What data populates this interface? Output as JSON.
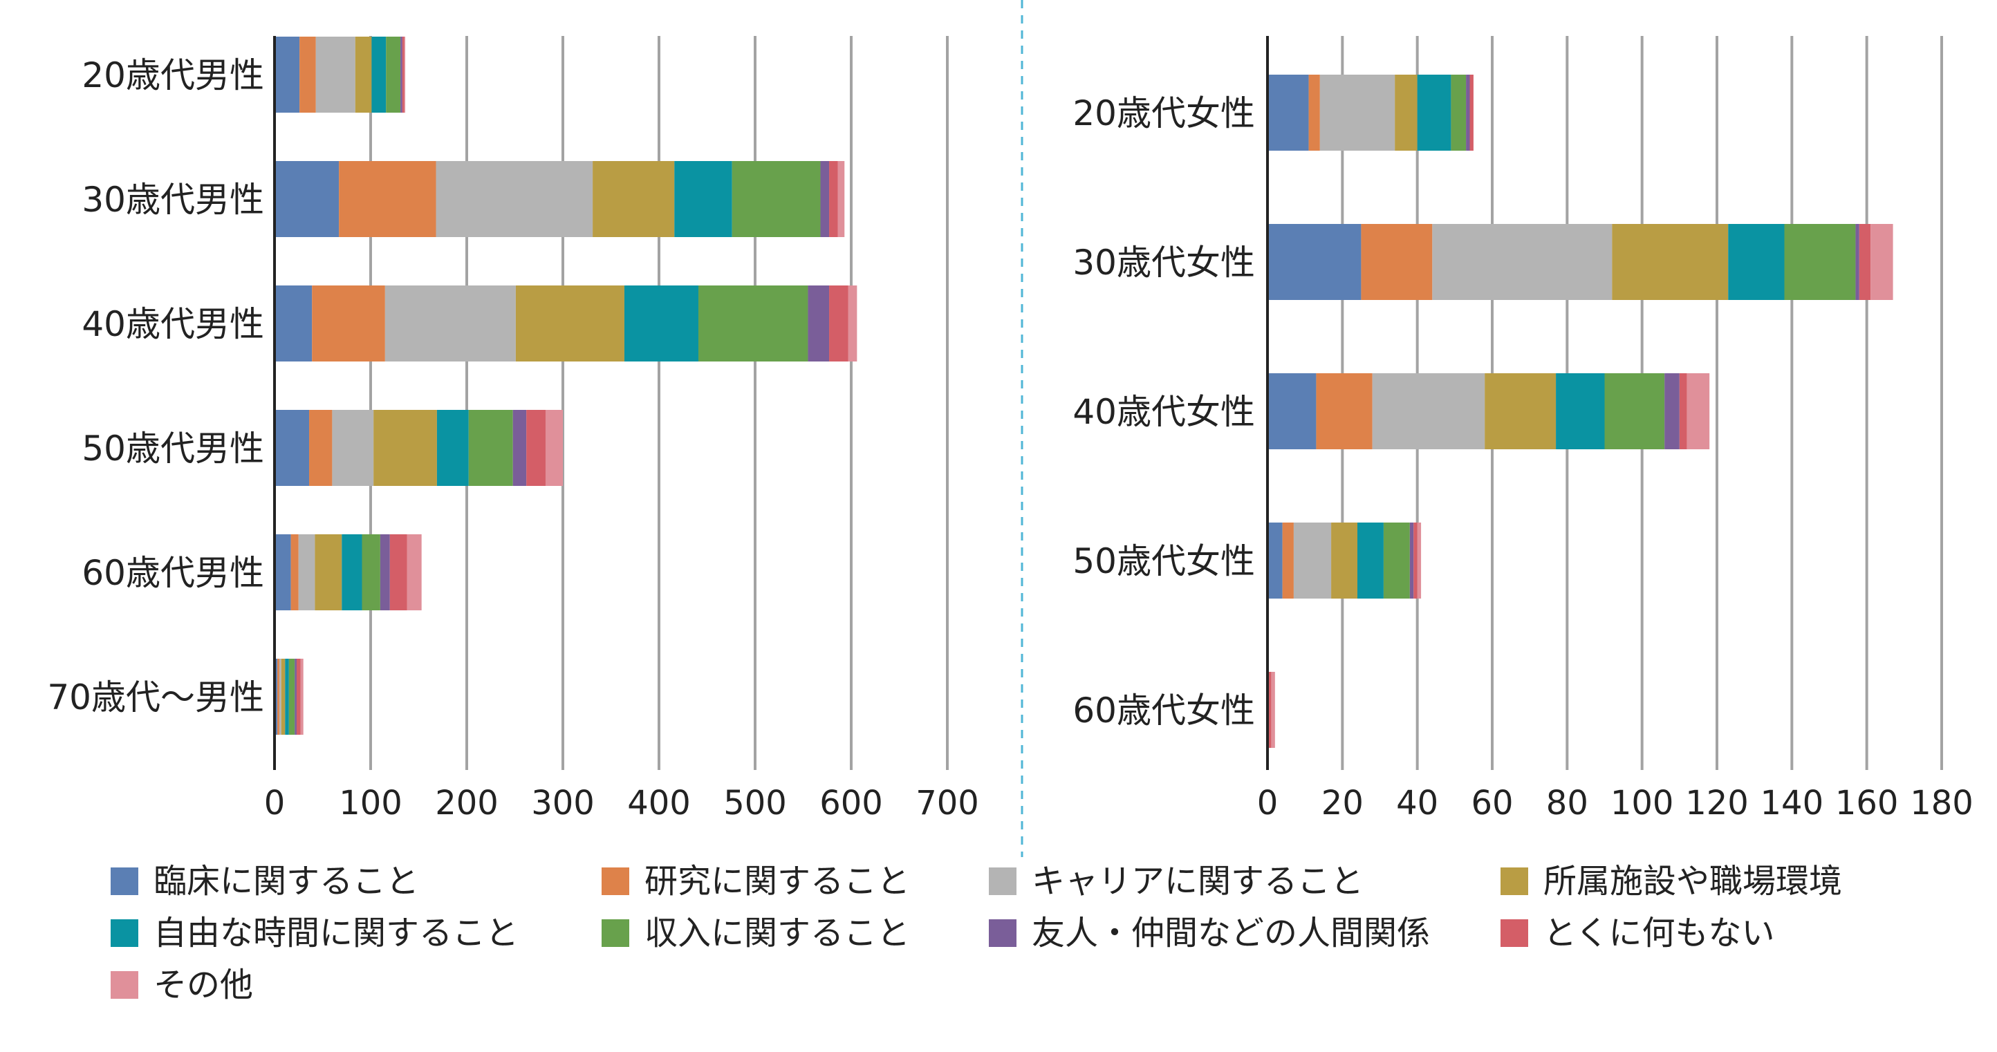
{
  "colors": {
    "clinical": "#5b7fb4",
    "research": "#de824a",
    "career": "#b4b4b4",
    "workplace": "#b99d44",
    "free_time": "#0a93a2",
    "income": "#68a14c",
    "relations": "#7a5e99",
    "nothing": "#d45e67",
    "other": "#e0909a",
    "grid": "#a3a3a3",
    "axis": "#222222",
    "divider": "#4fb6d6"
  },
  "legend": [
    {
      "label": "臨床に関すること",
      "color": "#5b7fb4"
    },
    {
      "label": "研究に関すること",
      "color": "#de824a"
    },
    {
      "label": "キャリアに関すること",
      "color": "#b4b4b4"
    },
    {
      "label": "所属施設や職場環境",
      "color": "#b99d44"
    },
    {
      "label": "自由な時間に関すること",
      "color": "#0a93a2"
    },
    {
      "label": "収入に関すること",
      "color": "#68a14c"
    },
    {
      "label": "友人・仲間などの人間関係",
      "color": "#7a5e99"
    },
    {
      "label": "とくに何もない",
      "color": "#d45e67"
    },
    {
      "label": "その他",
      "color": "#e0909a"
    }
  ],
  "chart_data": [
    {
      "type": "bar",
      "orientation": "horizontal",
      "stacked": true,
      "xlim": [
        0,
        700
      ],
      "ticks": [
        0,
        100,
        200,
        300,
        400,
        500,
        600,
        700
      ],
      "tick_labels": [
        "0",
        "100",
        "200",
        "300",
        "400",
        "500",
        "600",
        "700"
      ],
      "grid": true,
      "categories": [
        "20歳代男性",
        "30歳代男性",
        "40歳代男性",
        "50歳代男性",
        "60歳代男性",
        "70歳代〜男性"
      ],
      "series": [
        {
          "name": "臨床に関すること",
          "values": [
            26,
            67,
            39,
            36,
            17,
            3
          ]
        },
        {
          "name": "研究に関すること",
          "values": [
            17,
            101,
            76,
            24,
            8,
            2
          ]
        },
        {
          "name": "キャリアに関すること",
          "values": [
            41,
            163,
            136,
            43,
            17,
            2
          ]
        },
        {
          "name": "所属施設や職場環境",
          "values": [
            17,
            85,
            113,
            66,
            28,
            4
          ]
        },
        {
          "name": "自由な時間に関すること",
          "values": [
            15,
            60,
            77,
            33,
            21,
            4
          ]
        },
        {
          "name": "収入に関すること",
          "values": [
            15,
            92,
            114,
            46,
            19,
            6
          ]
        },
        {
          "name": "友人・仲間などの人間関係",
          "values": [
            2,
            9,
            22,
            14,
            10,
            2
          ]
        },
        {
          "name": "とくに何もない",
          "values": [
            2,
            9,
            20,
            20,
            18,
            4
          ]
        },
        {
          "name": "その他",
          "values": [
            1,
            7,
            9,
            18,
            15,
            3
          ]
        }
      ]
    },
    {
      "type": "bar",
      "orientation": "horizontal",
      "stacked": true,
      "xlim": [
        0,
        180
      ],
      "ticks": [
        0,
        20,
        40,
        60,
        80,
        100,
        120,
        140,
        160,
        180
      ],
      "tick_labels": [
        "0",
        "20",
        "40",
        "60",
        "80",
        "100",
        "120",
        "140",
        "160",
        "180"
      ],
      "grid": true,
      "categories": [
        "20歳代女性",
        "30歳代女性",
        "40歳代女性",
        "50歳代女性",
        "60歳代女性"
      ],
      "series": [
        {
          "name": "臨床に関すること",
          "values": [
            11,
            25,
            13,
            4,
            0
          ]
        },
        {
          "name": "研究に関すること",
          "values": [
            3,
            19,
            15,
            3,
            0
          ]
        },
        {
          "name": "キャリアに関すること",
          "values": [
            20,
            48,
            30,
            10,
            0
          ]
        },
        {
          "name": "所属施設や職場環境",
          "values": [
            6,
            31,
            19,
            7,
            0
          ]
        },
        {
          "name": "自由な時間に関すること",
          "values": [
            9,
            15,
            13,
            7,
            0
          ]
        },
        {
          "name": "収入に関すること",
          "values": [
            4,
            19,
            16,
            7,
            0
          ]
        },
        {
          "name": "友人・仲間などの人間関係",
          "values": [
            1,
            1,
            4,
            1,
            0
          ]
        },
        {
          "name": "とくに何もない",
          "values": [
            1,
            3,
            2,
            1,
            1
          ]
        },
        {
          "name": "その他",
          "values": [
            0,
            6,
            6,
            1,
            1
          ]
        }
      ]
    }
  ]
}
